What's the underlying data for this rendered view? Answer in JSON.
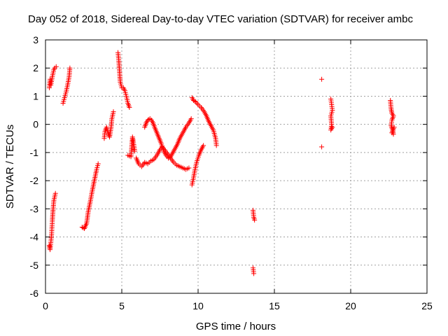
{
  "chart_data": {
    "type": "scatter",
    "title": "Day 052 of 2018, Sidereal Day-to-day VTEC variation (SDTVAR) for receiver ambc",
    "xlabel": "GPS time / hours",
    "ylabel": "SDTVAR / TECUs",
    "xlim": [
      0,
      25
    ],
    "ylim": [
      -6,
      3
    ],
    "x_ticks": [
      "0",
      "5",
      "10",
      "15",
      "20",
      "25"
    ],
    "y_ticks": [
      "3",
      "2",
      "1",
      "0",
      "-1",
      "-2",
      "-3",
      "-4",
      "-5",
      "-6"
    ],
    "grid": true,
    "marker": "+",
    "color": "#ff0000",
    "series": [
      {
        "segments": [
          [
            [
              0.25,
              1.3
            ],
            [
              0.3,
              1.6
            ],
            [
              0.35,
              1.4
            ],
            [
              0.45,
              1.7
            ],
            [
              0.55,
              1.95
            ],
            [
              0.6,
              2.0
            ],
            [
              0.7,
              2.05
            ]
          ],
          [
            [
              1.15,
              0.75
            ],
            [
              1.25,
              0.95
            ],
            [
              1.35,
              1.15
            ],
            [
              1.45,
              1.4
            ],
            [
              1.55,
              1.7
            ],
            [
              1.6,
              2.0
            ]
          ],
          [
            [
              0.25,
              -4.3
            ],
            [
              0.3,
              -4.45
            ],
            [
              0.35,
              -4.2
            ],
            [
              0.4,
              -3.9
            ],
            [
              0.45,
              -3.4
            ],
            [
              0.5,
              -3.0
            ],
            [
              0.55,
              -2.7
            ],
            [
              0.65,
              -2.45
            ]
          ],
          [
            [
              2.4,
              -3.65
            ],
            [
              2.55,
              -3.7
            ],
            [
              2.7,
              -3.5
            ],
            [
              2.8,
              -3.1
            ],
            [
              2.95,
              -2.7
            ],
            [
              3.05,
              -2.4
            ],
            [
              3.2,
              -2.0
            ],
            [
              3.35,
              -1.6
            ],
            [
              3.45,
              -1.4
            ]
          ],
          [
            [
              3.85,
              -0.5
            ],
            [
              3.9,
              -0.25
            ],
            [
              4.0,
              -0.1
            ],
            [
              4.1,
              -0.3
            ],
            [
              4.2,
              -0.45
            ],
            [
              4.3,
              -0.1
            ],
            [
              4.35,
              0.2
            ],
            [
              4.45,
              0.45
            ]
          ],
          [
            [
              4.75,
              2.55
            ],
            [
              4.8,
              2.3
            ],
            [
              4.85,
              1.9
            ],
            [
              4.9,
              1.5
            ],
            [
              5.0,
              1.3
            ],
            [
              5.1,
              1.3
            ],
            [
              5.2,
              1.2
            ],
            [
              5.3,
              1.0
            ],
            [
              5.4,
              0.75
            ],
            [
              5.5,
              0.6
            ]
          ],
          [
            [
              5.4,
              -1.1
            ],
            [
              5.6,
              -1.15
            ],
            [
              5.7,
              -0.45
            ],
            [
              5.75,
              -0.6
            ],
            [
              5.85,
              -0.95
            ]
          ],
          [
            [
              5.95,
              -1.2
            ],
            [
              6.1,
              -1.4
            ],
            [
              6.3,
              -1.5
            ],
            [
              6.5,
              -1.35
            ],
            [
              6.7,
              -1.4
            ],
            [
              6.9,
              -1.3
            ],
            [
              7.1,
              -1.25
            ],
            [
              7.3,
              -1.1
            ],
            [
              7.5,
              -0.9
            ],
            [
              7.65,
              -0.8
            ],
            [
              7.8,
              -0.9
            ],
            [
              8.0,
              -1.05
            ],
            [
              8.2,
              -1.2
            ],
            [
              8.4,
              -1.35
            ],
            [
              8.6,
              -1.45
            ],
            [
              8.8,
              -1.5
            ],
            [
              9.0,
              -1.55
            ],
            [
              9.2,
              -1.6
            ],
            [
              9.4,
              -1.55
            ]
          ],
          [
            [
              6.5,
              -0.1
            ],
            [
              6.6,
              0.05
            ],
            [
              6.7,
              0.15
            ],
            [
              6.85,
              0.2
            ],
            [
              6.95,
              0.15
            ],
            [
              7.05,
              0.05
            ],
            [
              7.15,
              -0.1
            ],
            [
              7.3,
              -0.3
            ],
            [
              7.45,
              -0.5
            ],
            [
              7.6,
              -0.7
            ],
            [
              7.75,
              -0.95
            ],
            [
              7.9,
              -1.1
            ],
            [
              8.05,
              -1.2
            ],
            [
              8.2,
              -1.15
            ],
            [
              8.35,
              -1.0
            ],
            [
              8.5,
              -0.85
            ],
            [
              8.65,
              -0.7
            ],
            [
              8.8,
              -0.5
            ],
            [
              9.0,
              -0.3
            ],
            [
              9.2,
              -0.1
            ],
            [
              9.4,
              0.05
            ],
            [
              9.55,
              0.2
            ]
          ],
          [
            [
              9.6,
              -2.15
            ],
            [
              9.7,
              -1.9
            ],
            [
              9.8,
              -1.6
            ],
            [
              9.9,
              -1.35
            ],
            [
              10.05,
              -1.1
            ],
            [
              10.2,
              -0.9
            ],
            [
              10.35,
              -0.75
            ]
          ],
          [
            [
              9.6,
              0.95
            ],
            [
              9.7,
              0.85
            ],
            [
              9.85,
              0.8
            ],
            [
              10.0,
              0.7
            ],
            [
              10.2,
              0.6
            ],
            [
              10.4,
              0.45
            ],
            [
              10.55,
              0.3
            ],
            [
              10.7,
              0.1
            ],
            [
              10.85,
              -0.05
            ],
            [
              11.0,
              -0.2
            ],
            [
              11.15,
              -0.5
            ],
            [
              11.2,
              -0.75
            ]
          ],
          [
            [
              13.6,
              -3.05
            ],
            [
              13.65,
              -3.3
            ],
            [
              13.7,
              -3.4
            ],
            [
              13.6,
              -5.1
            ],
            [
              13.65,
              -5.3
            ]
          ],
          [
            [
              18.1,
              1.6
            ],
            [
              18.1,
              -0.8
            ]
          ],
          [
            [
              18.7,
              0.9
            ],
            [
              18.75,
              0.7
            ],
            [
              18.8,
              0.5
            ],
            [
              18.7,
              0.3
            ],
            [
              18.75,
              0.0
            ],
            [
              18.7,
              -0.2
            ],
            [
              18.8,
              -0.1
            ]
          ],
          [
            [
              22.6,
              0.85
            ],
            [
              22.65,
              0.55
            ],
            [
              22.7,
              0.4
            ],
            [
              22.8,
              0.3
            ],
            [
              22.7,
              0.15
            ],
            [
              22.65,
              -0.05
            ],
            [
              22.75,
              -0.2
            ],
            [
              22.8,
              -0.35
            ],
            [
              22.7,
              -0.3
            ],
            [
              22.85,
              -0.1
            ]
          ]
        ]
      }
    ]
  }
}
